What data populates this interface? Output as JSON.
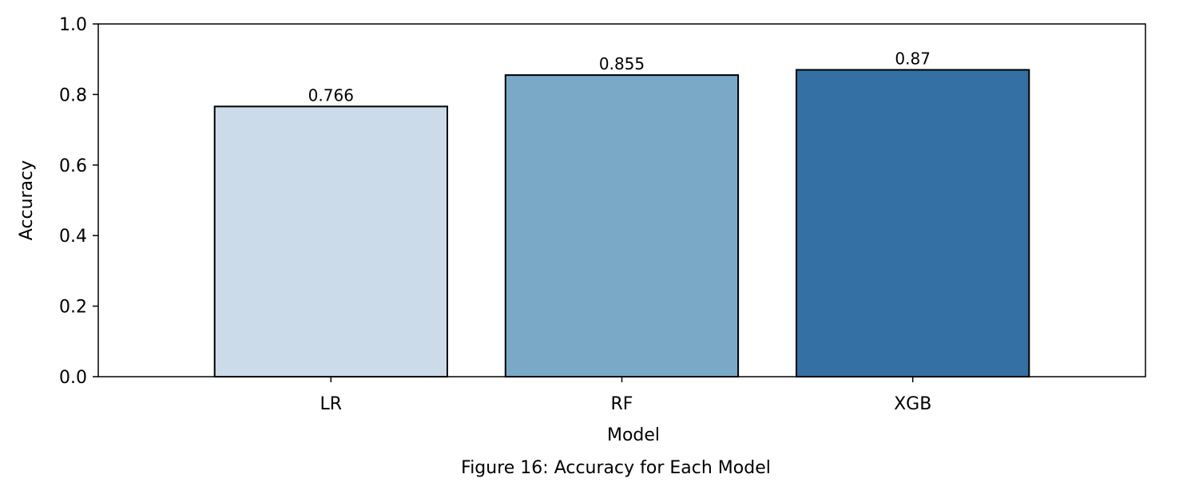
{
  "chart_data": {
    "type": "bar",
    "categories": [
      "LR",
      "RF",
      "XGB"
    ],
    "values": [
      0.766,
      0.855,
      0.87
    ],
    "data_labels": [
      "0.766",
      "0.855",
      "0.87"
    ],
    "colors": [
      "#cbdbea",
      "#7aa9c8",
      "#3470a4"
    ],
    "edge_color": "#000000",
    "xlabel": "Model",
    "ylabel": "Accuracy",
    "ylim": [
      0,
      1.0
    ],
    "yticks": [
      0.0,
      0.2,
      0.4,
      0.6,
      0.8,
      1.0
    ],
    "ytick_labels": [
      "0.0",
      "0.2",
      "0.4",
      "0.6",
      "0.8",
      "1.0"
    ],
    "grid": false,
    "legend": "none"
  },
  "caption": "Figure 16: Accuracy for Each Model"
}
